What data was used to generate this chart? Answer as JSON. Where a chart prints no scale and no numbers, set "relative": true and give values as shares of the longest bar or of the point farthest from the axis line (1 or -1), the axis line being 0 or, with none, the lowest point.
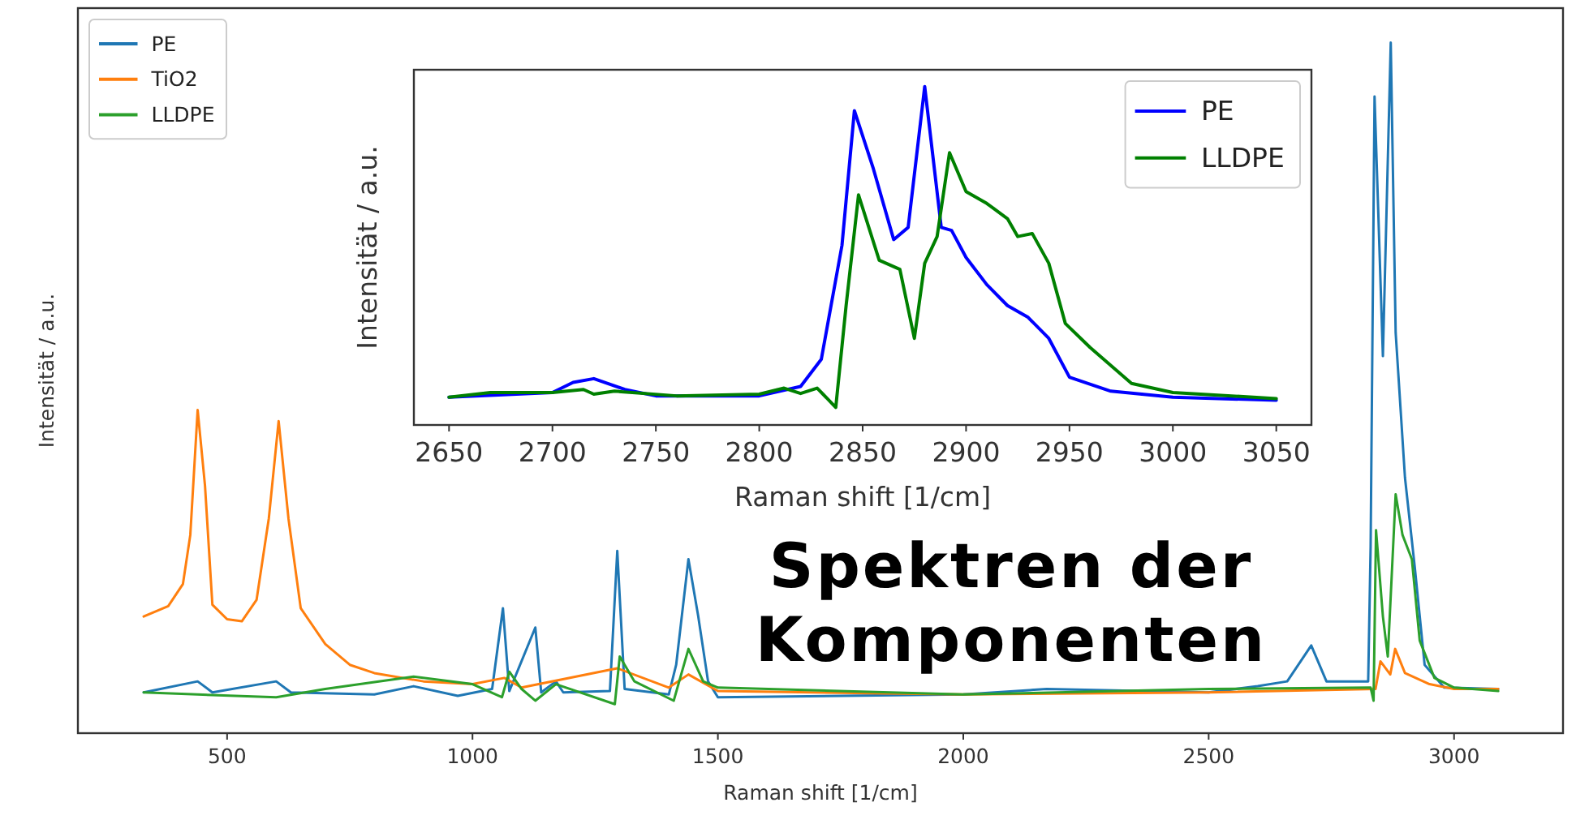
{
  "chart_data": [
    {
      "type": "line",
      "relative": true,
      "xlabel": "Raman shift [1/cm]",
      "ylabel": "Intensität / a.u.",
      "xlim": [
        196,
        3222
      ],
      "xticks": [
        500,
        1000,
        1500,
        2000,
        2500,
        3000
      ],
      "tick_labels": "x",
      "grid": false,
      "legend": "top left",
      "annotations": [
        "Spektren der Komponenten"
      ],
      "series": [
        {
          "name": "PE",
          "color": "#1f77b4",
          "x": [
            330,
            440,
            470,
            600,
            630,
            800,
            880,
            970,
            1040,
            1062,
            1075,
            1128,
            1140,
            1170,
            1185,
            1280,
            1295,
            1310,
            1400,
            1415,
            1440,
            1460,
            1480,
            1500,
            2000,
            2170,
            2500,
            2600,
            2660,
            2709,
            2740,
            2800,
            2825,
            2830,
            2838,
            2855,
            2871,
            2881,
            2900,
            2920,
            2940,
            2980,
            3090
          ],
          "values": [
            0.059,
            0.075,
            0.059,
            0.075,
            0.059,
            0.056,
            0.068,
            0.054,
            0.064,
            0.181,
            0.061,
            0.153,
            0.059,
            0.075,
            0.059,
            0.061,
            0.264,
            0.064,
            0.056,
            0.099,
            0.252,
            0.169,
            0.075,
            0.052,
            0.056,
            0.064,
            0.059,
            0.068,
            0.075,
            0.127,
            0.075,
            0.075,
            0.075,
            0.27,
            0.922,
            0.546,
            1.0,
            0.58,
            0.37,
            0.24,
            0.099,
            0.066,
            0.064
          ]
        },
        {
          "name": "TiO2",
          "color": "#ff7f0e",
          "x": [
            330,
            380,
            410,
            425,
            440,
            455,
            470,
            500,
            530,
            560,
            585,
            605,
            625,
            650,
            700,
            750,
            800,
            900,
            1000,
            1065,
            1100,
            1295,
            1400,
            1440,
            1500,
            2000,
            2500,
            2840,
            2850,
            2870,
            2880,
            2900,
            2950,
            3000,
            3090
          ],
          "values": [
            0.169,
            0.184,
            0.216,
            0.287,
            0.468,
            0.358,
            0.186,
            0.165,
            0.162,
            0.193,
            0.311,
            0.452,
            0.311,
            0.181,
            0.129,
            0.099,
            0.087,
            0.075,
            0.071,
            0.08,
            0.066,
            0.094,
            0.066,
            0.085,
            0.061,
            0.056,
            0.059,
            0.064,
            0.104,
            0.085,
            0.122,
            0.087,
            0.071,
            0.064,
            0.064
          ]
        },
        {
          "name": "LLDPE",
          "color": "#2ca02c",
          "x": [
            330,
            440,
            600,
            700,
            880,
            1000,
            1060,
            1075,
            1100,
            1128,
            1170,
            1290,
            1300,
            1330,
            1410,
            1440,
            1470,
            1500,
            2000,
            2500,
            2830,
            2836,
            2841,
            2855,
            2865,
            2881,
            2895,
            2914,
            2930,
            2960,
            3000,
            3090
          ],
          "values": [
            0.059,
            0.056,
            0.052,
            0.064,
            0.082,
            0.071,
            0.052,
            0.089,
            0.064,
            0.047,
            0.071,
            0.042,
            0.111,
            0.075,
            0.047,
            0.122,
            0.075,
            0.066,
            0.056,
            0.064,
            0.066,
            0.047,
            0.294,
            0.169,
            0.111,
            0.346,
            0.287,
            0.252,
            0.134,
            0.08,
            0.066,
            0.061
          ]
        }
      ]
    },
    {
      "type": "line",
      "relative": true,
      "xlabel": "Raman shift [1/cm]",
      "ylabel": "Intensität / a.u.",
      "xlim": [
        2633,
        3067
      ],
      "xticks": [
        2650,
        2700,
        2750,
        2800,
        2850,
        2900,
        2950,
        3000,
        3050
      ],
      "tick_labels": "x",
      "grid": false,
      "legend": "top right",
      "series": [
        {
          "name": "PE",
          "color": "#0000ff",
          "x": [
            2650,
            2700,
            2710,
            2720,
            2735,
            2750,
            2800,
            2820,
            2830,
            2840,
            2846,
            2855,
            2865,
            2872,
            2880,
            2888,
            2893,
            2900,
            2910,
            2920,
            2930,
            2940,
            2950,
            2970,
            3000,
            3050
          ],
          "values": [
            0.082,
            0.096,
            0.126,
            0.137,
            0.105,
            0.086,
            0.086,
            0.114,
            0.194,
            0.531,
            0.929,
            0.761,
            0.548,
            0.584,
            1.0,
            0.584,
            0.575,
            0.495,
            0.415,
            0.353,
            0.318,
            0.256,
            0.141,
            0.1,
            0.082,
            0.073
          ]
        },
        {
          "name": "LLDPE",
          "color": "#008000",
          "x": [
            2650,
            2670,
            2700,
            2715,
            2720,
            2730,
            2760,
            2800,
            2812,
            2820,
            2828,
            2837,
            2842,
            2848,
            2858,
            2868,
            2875,
            2880,
            2886,
            2892,
            2900,
            2910,
            2920,
            2925,
            2932,
            2940,
            2948,
            2960,
            2980,
            3000,
            3050
          ],
          "values": [
            0.082,
            0.096,
            0.096,
            0.105,
            0.091,
            0.1,
            0.086,
            0.091,
            0.109,
            0.093,
            0.109,
            0.052,
            0.353,
            0.68,
            0.487,
            0.46,
            0.256,
            0.478,
            0.557,
            0.805,
            0.69,
            0.655,
            0.61,
            0.557,
            0.566,
            0.478,
            0.3,
            0.229,
            0.123,
            0.096,
            0.078
          ]
        }
      ]
    }
  ]
}
